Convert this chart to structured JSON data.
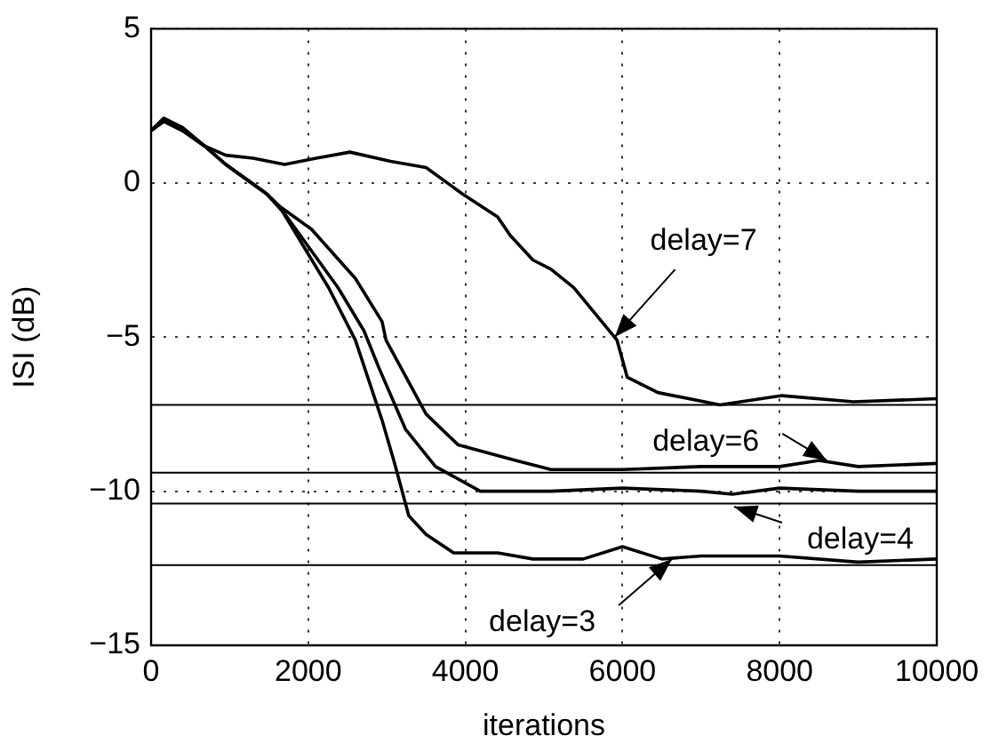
{
  "chart_data": {
    "type": "line",
    "xlabel": "iterations",
    "ylabel": "ISI (dB)",
    "xlim": [
      0,
      10000
    ],
    "ylim": [
      -15,
      5
    ],
    "xticks": [
      0,
      2000,
      4000,
      6000,
      8000,
      10000
    ],
    "yticks": [
      {
        "value": -15,
        "label": "−15"
      },
      {
        "value": -10,
        "label": "−10"
      },
      {
        "value": -5,
        "label": "−5"
      },
      0,
      5
    ],
    "grid": true,
    "legend": false,
    "marker": "none",
    "line_style": "solid",
    "series": [
      {
        "color": "#000000",
        "x": [
          0,
          160,
          400,
          680,
          950,
          1300,
          1700,
          2100,
          2530,
          3050,
          3500,
          3960,
          4410,
          4570,
          4860,
          5090,
          5380,
          5930,
          6060,
          6450,
          7240,
          8030,
          8940,
          10000
        ],
        "values": [
          1.7,
          2.1,
          1.8,
          1.2,
          0.9,
          0.8,
          0.6,
          0.8,
          1.0,
          0.7,
          0.5,
          -0.35,
          -1.1,
          -1.7,
          -2.5,
          -2.8,
          -3.4,
          -5.1,
          -6.3,
          -6.8,
          -7.2,
          -6.9,
          -7.1,
          -7.0
        ]
      },
      {
        "color": "#000000",
        "x": [
          0,
          160,
          400,
          680,
          950,
          1470,
          1630,
          2040,
          2600,
          2940,
          2990,
          3500,
          3910,
          4640,
          5090,
          6000,
          7000,
          8000,
          8500,
          9000,
          10000
        ],
        "values": [
          1.7,
          2.0,
          1.7,
          1.2,
          0.6,
          -0.35,
          -0.75,
          -1.5,
          -3.1,
          -4.5,
          -5.1,
          -7.5,
          -8.5,
          -9.0,
          -9.3,
          -9.3,
          -9.2,
          -9.2,
          -9.0,
          -9.2,
          -9.1
        ]
      },
      {
        "color": "#000000",
        "x": [
          0,
          160,
          400,
          680,
          950,
          1470,
          1700,
          2380,
          2710,
          2900,
          3240,
          3620,
          4190,
          5090,
          6000,
          7000,
          7400,
          8000,
          9000,
          10000
        ],
        "values": [
          1.7,
          2.0,
          1.7,
          1.2,
          0.6,
          -0.35,
          -1.0,
          -3.4,
          -4.8,
          -6.0,
          -8.0,
          -9.2,
          -10.0,
          -10.0,
          -9.9,
          -10.0,
          -10.1,
          -9.9,
          -10.0,
          -10.0
        ]
      },
      {
        "color": "#000000",
        "x": [
          0,
          160,
          400,
          680,
          950,
          1470,
          1630,
          2260,
          2600,
          2940,
          3100,
          3280,
          3500,
          3850,
          4410,
          4860,
          5500,
          6000,
          6500,
          7000,
          8000,
          9000,
          10000
        ],
        "values": [
          1.7,
          2.0,
          1.7,
          1.2,
          0.6,
          -0.35,
          -0.75,
          -3.4,
          -5.1,
          -7.7,
          -9.1,
          -10.8,
          -11.4,
          -12.0,
          -12.0,
          -12.2,
          -12.2,
          -11.8,
          -12.2,
          -12.1,
          -12.1,
          -12.3,
          -12.2
        ]
      }
    ],
    "ref_lines": [
      {
        "axis": "y",
        "value": -7.2,
        "color": "#000000"
      },
      {
        "axis": "y",
        "value": -9.4,
        "color": "#000000"
      },
      {
        "axis": "y",
        "value": -10.4,
        "color": "#000000"
      },
      {
        "axis": "y",
        "value": -12.4,
        "color": "#000000"
      }
    ],
    "annotations": [
      {
        "text": "delay=7",
        "x": 5900,
        "y": -5.0
      },
      {
        "text": "delay=6",
        "x": 8600,
        "y": -9.0
      },
      {
        "text": "delay=4",
        "x": 7420,
        "y": -10.5
      },
      {
        "text": "delay=3",
        "x": 6630,
        "y": -12.2
      }
    ]
  }
}
